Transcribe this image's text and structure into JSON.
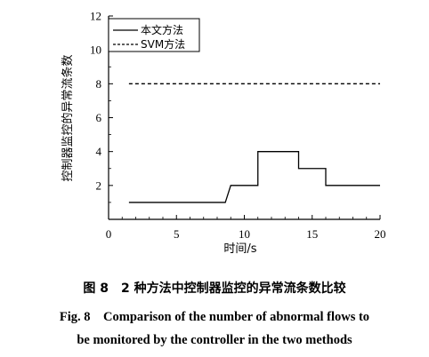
{
  "chart_data": {
    "type": "line",
    "xlabel": "时间/s",
    "ylabel": "控制器监控的异常流条数",
    "xlim": [
      0,
      20
    ],
    "ylim": [
      0,
      12
    ],
    "x_ticks": [
      0,
      5,
      10,
      15,
      20
    ],
    "y_ticks": [
      2,
      4,
      6,
      8,
      10,
      12
    ],
    "legend_position": "top-left",
    "series": [
      {
        "name": "本文方法",
        "style": "solid",
        "color": "#000000",
        "step": true,
        "x": [
          1.5,
          8.6,
          9.0,
          11.0,
          11.0,
          14.0,
          14.0,
          16.0,
          16.0,
          20.0
        ],
        "y": [
          1.0,
          1.0,
          2.0,
          2.0,
          4.0,
          4.0,
          3.0,
          3.0,
          2.0,
          2.0
        ]
      },
      {
        "name": "SVM方法",
        "style": "dashed",
        "color": "#000000",
        "x": [
          1.5,
          20.0
        ],
        "y": [
          8.0,
          8.0
        ]
      }
    ]
  },
  "caption": {
    "cn": "图 8　2 种方法中控制器监控的异常流条数比较",
    "en_line1": "Fig. 8　Comparison of the number of abnormal flows to",
    "en_line2": "be monitored by the controller in the two methods"
  }
}
